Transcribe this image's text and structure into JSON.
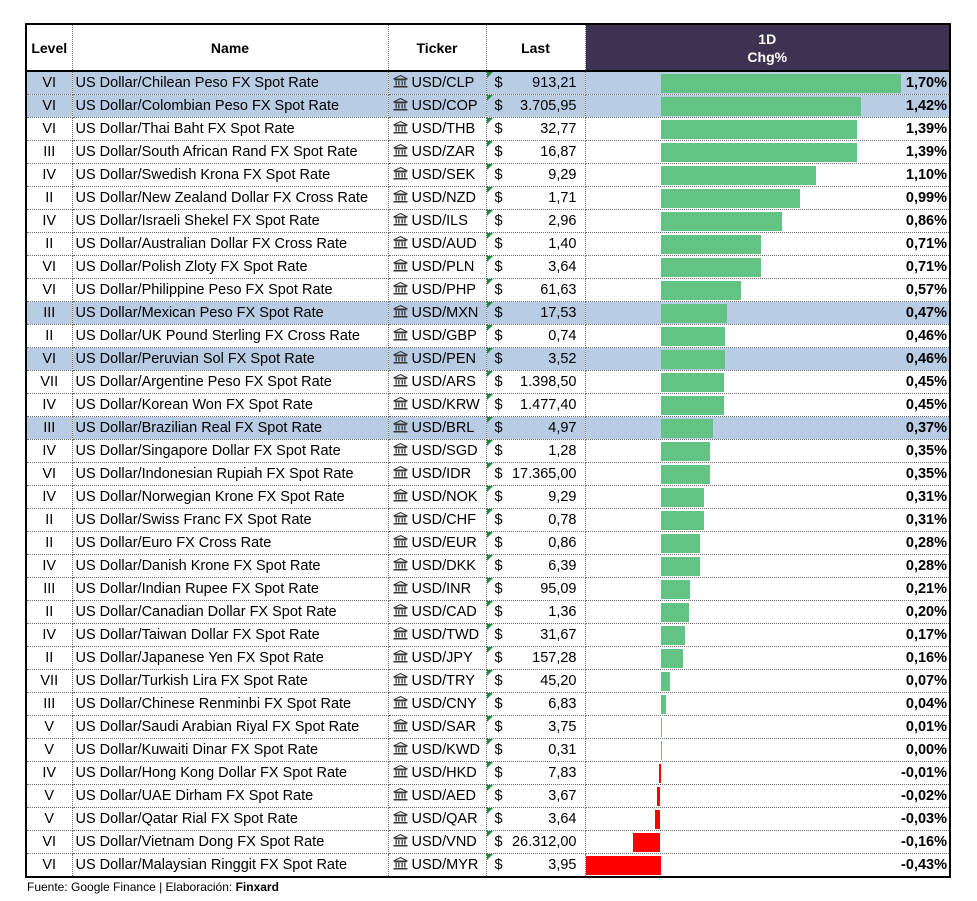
{
  "header": {
    "level": "Level",
    "name": "Name",
    "ticker": "Ticker",
    "last": "Last",
    "period": "1D",
    "chg": "Chg%"
  },
  "colors": {
    "positive_bar": "#63c384",
    "negative_bar": "#ff0000",
    "header_bg": "#3d3250",
    "highlight_row": "#b8cce4"
  },
  "currency_symbol": "$",
  "icon": "bank-icon",
  "rows": [
    {
      "level": "VI",
      "name": "US Dollar/Chilean Peso FX Spot Rate",
      "ticker": "USD/CLP",
      "last": "913,21",
      "chg": "1,70%",
      "highlight": true
    },
    {
      "level": "VI",
      "name": "US Dollar/Colombian Peso FX Spot Rate",
      "ticker": "USD/COP",
      "last": "3.705,95",
      "chg": "1,42%",
      "highlight": true
    },
    {
      "level": "VI",
      "name": "US Dollar/Thai Baht FX Spot Rate",
      "ticker": "USD/THB",
      "last": "32,77",
      "chg": "1,39%",
      "highlight": false
    },
    {
      "level": "III",
      "name": "US Dollar/South African Rand FX Spot Rate",
      "ticker": "USD/ZAR",
      "last": "16,87",
      "chg": "1,39%",
      "highlight": false
    },
    {
      "level": "IV",
      "name": "US Dollar/Swedish Krona FX Spot Rate",
      "ticker": "USD/SEK",
      "last": "9,29",
      "chg": "1,10%",
      "highlight": false
    },
    {
      "level": "II",
      "name": "US Dollar/New Zealand Dollar FX Cross Rate",
      "ticker": "USD/NZD",
      "last": "1,71",
      "chg": "0,99%",
      "highlight": false
    },
    {
      "level": "IV",
      "name": "US Dollar/Israeli Shekel FX Spot Rate",
      "ticker": "USD/ILS",
      "last": "2,96",
      "chg": "0,86%",
      "highlight": false
    },
    {
      "level": "II",
      "name": "US Dollar/Australian Dollar FX Cross Rate",
      "ticker": "USD/AUD",
      "last": "1,40",
      "chg": "0,71%",
      "highlight": false
    },
    {
      "level": "VI",
      "name": "US Dollar/Polish Zloty FX Spot Rate",
      "ticker": "USD/PLN",
      "last": "3,64",
      "chg": "0,71%",
      "highlight": false
    },
    {
      "level": "VI",
      "name": "US Dollar/Philippine Peso FX Spot Rate",
      "ticker": "USD/PHP",
      "last": "61,63",
      "chg": "0,57%",
      "highlight": false
    },
    {
      "level": "III",
      "name": "US Dollar/Mexican Peso FX Spot Rate",
      "ticker": "USD/MXN",
      "last": "17,53",
      "chg": "0,47%",
      "highlight": true
    },
    {
      "level": "II",
      "name": "US Dollar/UK Pound Sterling FX Cross Rate",
      "ticker": "USD/GBP",
      "last": "0,74",
      "chg": "0,46%",
      "highlight": false
    },
    {
      "level": "VI",
      "name": "US Dollar/Peruvian Sol FX Spot Rate",
      "ticker": "USD/PEN",
      "last": "3,52",
      "chg": "0,46%",
      "highlight": true
    },
    {
      "level": "VII",
      "name": "US Dollar/Argentine Peso FX Spot Rate",
      "ticker": "USD/ARS",
      "last": "1.398,50",
      "chg": "0,45%",
      "highlight": false
    },
    {
      "level": "IV",
      "name": "US Dollar/Korean Won FX Spot Rate",
      "ticker": "USD/KRW",
      "last": "1.477,40",
      "chg": "0,45%",
      "highlight": false
    },
    {
      "level": "III",
      "name": "US Dollar/Brazilian Real FX Spot Rate",
      "ticker": "USD/BRL",
      "last": "4,97",
      "chg": "0,37%",
      "highlight": true
    },
    {
      "level": "IV",
      "name": "US Dollar/Singapore Dollar FX Spot Rate",
      "ticker": "USD/SGD",
      "last": "1,28",
      "chg": "0,35%",
      "highlight": false
    },
    {
      "level": "VI",
      "name": "US Dollar/Indonesian Rupiah FX Spot Rate",
      "ticker": "USD/IDR",
      "last": "17.365,00",
      "chg": "0,35%",
      "highlight": false
    },
    {
      "level": "IV",
      "name": "US Dollar/Norwegian Krone FX Spot Rate",
      "ticker": "USD/NOK",
      "last": "9,29",
      "chg": "0,31%",
      "highlight": false
    },
    {
      "level": "II",
      "name": "US Dollar/Swiss Franc FX Spot Rate",
      "ticker": "USD/CHF",
      "last": "0,78",
      "chg": "0,31%",
      "highlight": false
    },
    {
      "level": "II",
      "name": "US Dollar/Euro FX Cross Rate",
      "ticker": "USD/EUR",
      "last": "0,86",
      "chg": "0,28%",
      "highlight": false
    },
    {
      "level": "IV",
      "name": "US Dollar/Danish Krone FX Spot Rate",
      "ticker": "USD/DKK",
      "last": "6,39",
      "chg": "0,28%",
      "highlight": false
    },
    {
      "level": "III",
      "name": "US Dollar/Indian Rupee FX Spot Rate",
      "ticker": "USD/INR",
      "last": "95,09",
      "chg": "0,21%",
      "highlight": false
    },
    {
      "level": "II",
      "name": "US Dollar/Canadian Dollar FX Spot Rate",
      "ticker": "USD/CAD",
      "last": "1,36",
      "chg": "0,20%",
      "highlight": false
    },
    {
      "level": "IV",
      "name": "US Dollar/Taiwan Dollar FX Spot Rate",
      "ticker": "USD/TWD",
      "last": "31,67",
      "chg": "0,17%",
      "highlight": false
    },
    {
      "level": "II",
      "name": "US Dollar/Japanese Yen FX Spot Rate",
      "ticker": "USD/JPY",
      "last": "157,28",
      "chg": "0,16%",
      "highlight": false
    },
    {
      "level": "VII",
      "name": "US Dollar/Turkish Lira FX Spot Rate",
      "ticker": "USD/TRY",
      "last": "45,20",
      "chg": "0,07%",
      "highlight": false
    },
    {
      "level": "III",
      "name": "US Dollar/Chinese Renminbi FX Spot Rate",
      "ticker": "USD/CNY",
      "last": "6,83",
      "chg": "0,04%",
      "highlight": false
    },
    {
      "level": "V",
      "name": "US Dollar/Saudi Arabian Riyal FX Spot Rate",
      "ticker": "USD/SAR",
      "last": "3,75",
      "chg": "0,01%",
      "highlight": false
    },
    {
      "level": "V",
      "name": "US Dollar/Kuwaiti Dinar FX Spot Rate",
      "ticker": "USD/KWD",
      "last": "0,31",
      "chg": "0,00%",
      "highlight": false
    },
    {
      "level": "IV",
      "name": "US Dollar/Hong Kong Dollar FX Spot Rate",
      "ticker": "USD/HKD",
      "last": "7,83",
      "chg": "-0,01%",
      "highlight": false
    },
    {
      "level": "V",
      "name": "US Dollar/UAE Dirham FX Spot Rate",
      "ticker": "USD/AED",
      "last": "3,67",
      "chg": "-0,02%",
      "highlight": false
    },
    {
      "level": "V",
      "name": "US Dollar/Qatar Rial FX Spot Rate",
      "ticker": "USD/QAR",
      "last": "3,64",
      "chg": "-0,03%",
      "highlight": false
    },
    {
      "level": "VI",
      "name": "US Dollar/Vietnam Dong FX Spot Rate",
      "ticker": "USD/VND",
      "last": "26.312,00",
      "chg": "-0,16%",
      "highlight": false
    },
    {
      "level": "VI",
      "name": "US Dollar/Malaysian Ringgit FX Spot Rate",
      "ticker": "USD/MYR",
      "last": "3,95",
      "chg": "-0,43%",
      "highlight": false
    }
  ],
  "chart_data": {
    "type": "bar",
    "orientation": "horizontal",
    "categories": [
      "USD/CLP",
      "USD/COP",
      "USD/THB",
      "USD/ZAR",
      "USD/SEK",
      "USD/NZD",
      "USD/ILS",
      "USD/AUD",
      "USD/PLN",
      "USD/PHP",
      "USD/MXN",
      "USD/GBP",
      "USD/PEN",
      "USD/ARS",
      "USD/KRW",
      "USD/BRL",
      "USD/SGD",
      "USD/IDR",
      "USD/NOK",
      "USD/CHF",
      "USD/EUR",
      "USD/DKK",
      "USD/INR",
      "USD/CAD",
      "USD/TWD",
      "USD/JPY",
      "USD/TRY",
      "USD/CNY",
      "USD/SAR",
      "USD/KWD",
      "USD/HKD",
      "USD/AED",
      "USD/QAR",
      "USD/VND",
      "USD/MYR"
    ],
    "values": [
      1.7,
      1.42,
      1.39,
      1.39,
      1.1,
      0.99,
      0.86,
      0.71,
      0.71,
      0.57,
      0.47,
      0.46,
      0.46,
      0.45,
      0.45,
      0.37,
      0.35,
      0.35,
      0.31,
      0.31,
      0.28,
      0.28,
      0.21,
      0.2,
      0.17,
      0.16,
      0.07,
      0.04,
      0.01,
      0.0,
      -0.01,
      -0.02,
      -0.03,
      -0.16,
      -0.43
    ],
    "title": "1D",
    "xlabel": "Chg%",
    "ylabel": "",
    "xlim": [
      -0.43,
      1.7
    ],
    "grid": false,
    "legend": "none"
  },
  "footer": {
    "source": "Fuente: Google Finance | Elaboración: ",
    "brand": "Finxard"
  }
}
